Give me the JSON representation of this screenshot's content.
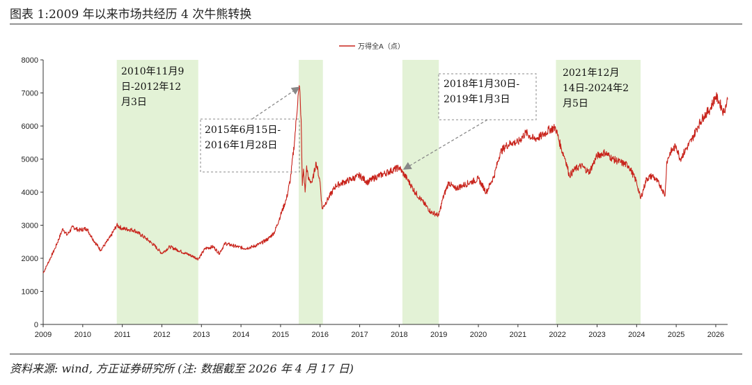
{
  "figure": {
    "title": "图表 1:2009 年以来市场共经历 4 次牛熊转换",
    "source": "资料来源: wind, 方正证券研究所 (注: 数据截至 2026 年 4 月 17 日)"
  },
  "colors": {
    "line": "#c8231b",
    "shade": "#e3f2d6",
    "axis": "#333333",
    "annotation": "#888888"
  },
  "chart_data": {
    "type": "line",
    "title": "",
    "xlabel": "",
    "ylabel": "",
    "legend": {
      "label": "万得全A（点）",
      "position": "top-center"
    },
    "ylim": [
      0,
      8000
    ],
    "xlim": [
      2009.0,
      2026.3
    ],
    "y_ticks": [
      0,
      1000,
      2000,
      3000,
      4000,
      5000,
      6000,
      7000,
      8000
    ],
    "x_ticks": [
      2009,
      2010,
      2011,
      2012,
      2013,
      2014,
      2015,
      2016,
      2017,
      2018,
      2019,
      2020,
      2021,
      2022,
      2023,
      2024,
      2025,
      2026
    ],
    "grid": false,
    "series": [
      {
        "name": "万得全A（点）",
        "x": [
          2009.0,
          2009.1,
          2009.3,
          2009.5,
          2009.6,
          2009.75,
          2009.9,
          2010.1,
          2010.3,
          2010.45,
          2010.55,
          2010.7,
          2010.86,
          2011.0,
          2011.3,
          2011.6,
          2011.8,
          2012.0,
          2012.2,
          2012.4,
          2012.6,
          2012.8,
          2012.92,
          2013.1,
          2013.3,
          2013.45,
          2013.6,
          2013.75,
          2013.9,
          2014.1,
          2014.3,
          2014.5,
          2014.7,
          2014.85,
          2015.0,
          2015.15,
          2015.25,
          2015.35,
          2015.45,
          2015.48,
          2015.52,
          2015.55,
          2015.58,
          2015.62,
          2015.66,
          2015.7,
          2015.8,
          2015.9,
          2016.0,
          2016.05,
          2016.2,
          2016.4,
          2016.6,
          2016.8,
          2017.0,
          2017.2,
          2017.4,
          2017.6,
          2017.8,
          2018.0,
          2018.08,
          2018.2,
          2018.4,
          2018.6,
          2018.8,
          2019.0,
          2019.1,
          2019.25,
          2019.4,
          2019.6,
          2019.8,
          2020.0,
          2020.2,
          2020.4,
          2020.55,
          2020.7,
          2020.85,
          2021.0,
          2021.2,
          2021.4,
          2021.6,
          2021.8,
          2021.95,
          2022.1,
          2022.2,
          2022.3,
          2022.45,
          2022.6,
          2022.8,
          2023.0,
          2023.2,
          2023.4,
          2023.6,
          2023.8,
          2024.0,
          2024.1,
          2024.25,
          2024.4,
          2024.6,
          2024.72,
          2024.76,
          2024.85,
          2025.0,
          2025.1,
          2025.25,
          2025.4,
          2025.55,
          2025.7,
          2025.85,
          2026.0,
          2026.1,
          2026.2,
          2026.3
        ],
        "values": [
          1550,
          1800,
          2300,
          2900,
          2700,
          2950,
          2850,
          2900,
          2500,
          2250,
          2400,
          2650,
          3000,
          2900,
          2850,
          2600,
          2400,
          2150,
          2350,
          2250,
          2150,
          2050,
          1980,
          2300,
          2350,
          2150,
          2450,
          2400,
          2350,
          2300,
          2350,
          2450,
          2600,
          2800,
          3300,
          3800,
          4400,
          5500,
          7000,
          7200,
          6200,
          4200,
          4700,
          4000,
          4800,
          4400,
          4300,
          4900,
          4300,
          3500,
          3800,
          4200,
          4300,
          4400,
          4500,
          4300,
          4450,
          4550,
          4650,
          4750,
          4600,
          4400,
          4000,
          3700,
          3400,
          3300,
          3800,
          4300,
          4100,
          4200,
          4300,
          4400,
          4000,
          4500,
          5200,
          5400,
          5500,
          5500,
          5800,
          5600,
          5700,
          5900,
          5950,
          5300,
          5000,
          4500,
          4700,
          4800,
          4600,
          5100,
          5200,
          5000,
          4900,
          4800,
          4300,
          3800,
          4400,
          4500,
          4200,
          3900,
          4900,
          5200,
          5400,
          5000,
          5300,
          5600,
          6000,
          6300,
          6500,
          6900,
          6700,
          6400,
          6800
        ]
      }
    ],
    "shaded_periods": [
      {
        "start": 2010.86,
        "end": 2012.92,
        "label_lines": [
          "2010年11月9",
          "日-2012年12",
          "月3日"
        ]
      },
      {
        "start": 2015.46,
        "end": 2016.07,
        "label_lines": [
          "2015年6月15日-",
          "2016年1月28日"
        ]
      },
      {
        "start": 2018.08,
        "end": 2019.0,
        "label_lines": [
          "2018年1月30日-",
          "2019年1月3日"
        ]
      },
      {
        "start": 2021.96,
        "end": 2024.1,
        "label_lines": [
          "2021年12月",
          "14日-2024年2",
          "月5日"
        ]
      }
    ]
  }
}
